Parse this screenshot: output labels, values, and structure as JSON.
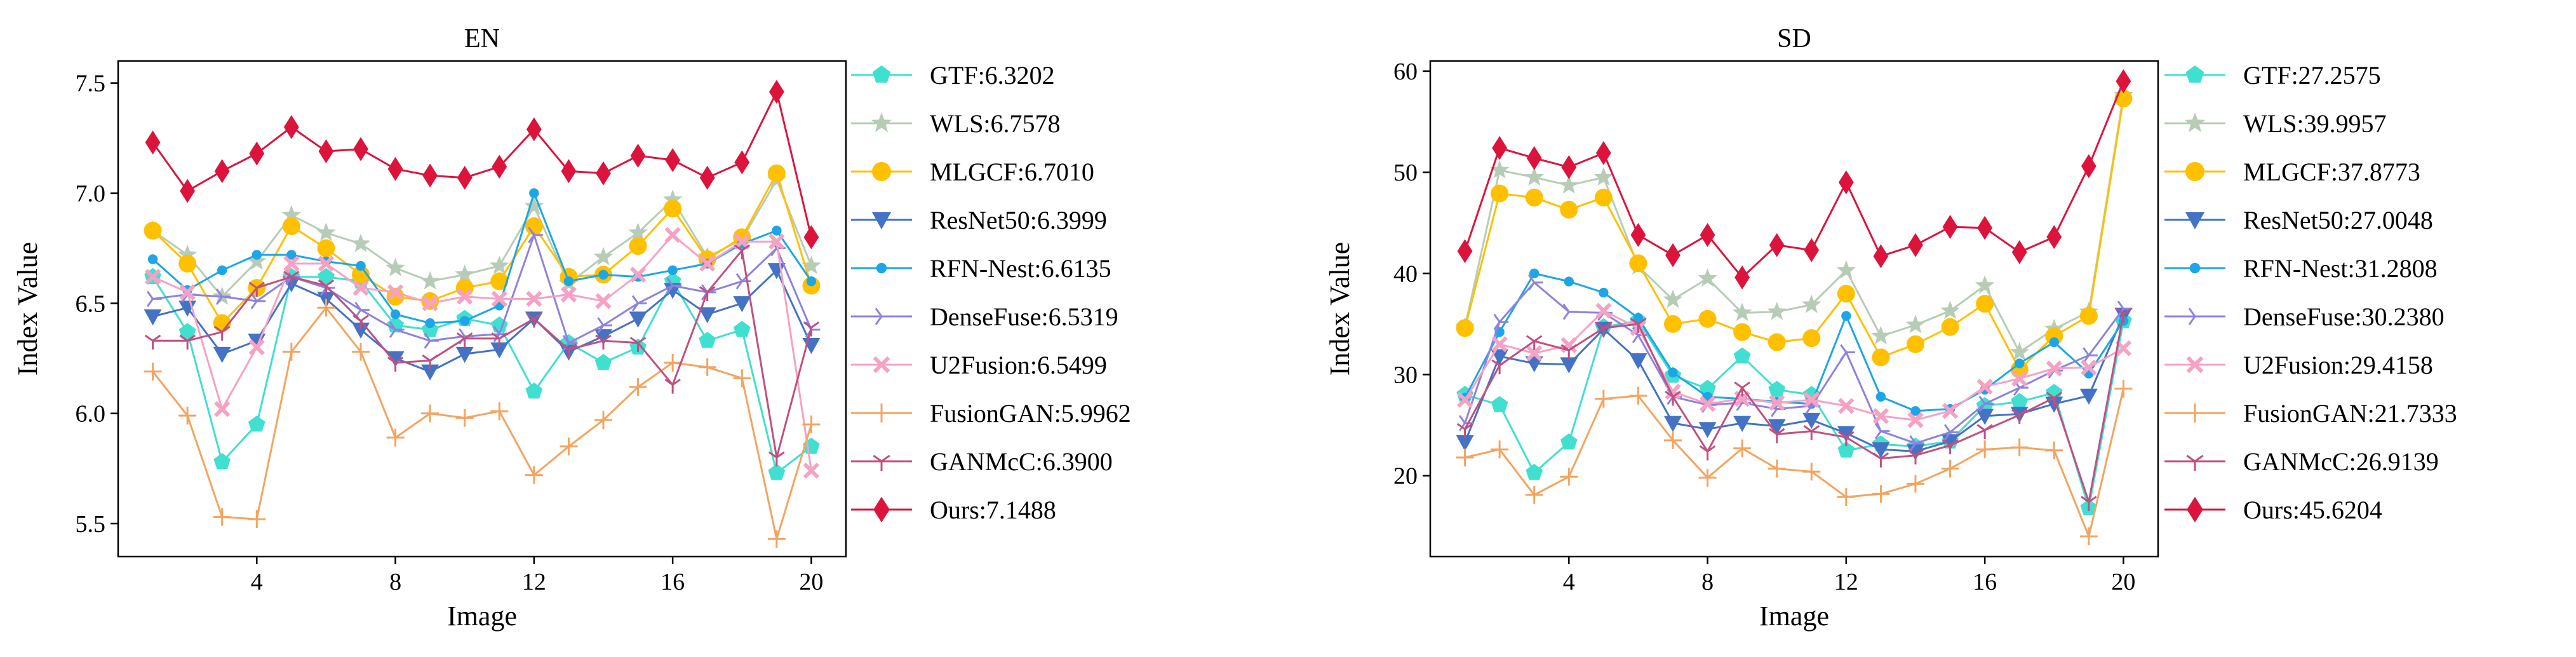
{
  "chart_data": [
    {
      "type": "line",
      "title": "EN",
      "xlabel": "Image",
      "ylabel": "Index Value",
      "xlim": [
        0,
        21
      ],
      "ylim": [
        5.35,
        7.6
      ],
      "xticks": [
        4,
        8,
        12,
        16,
        20
      ],
      "yticks": [
        5.5,
        6.0,
        6.5,
        7.0,
        7.5
      ],
      "ytick_labels": [
        "5.5",
        "6.0",
        "6.5",
        "7.0",
        "7.5"
      ],
      "x": [
        1,
        2,
        3,
        4,
        5,
        6,
        7,
        8,
        9,
        10,
        11,
        12,
        13,
        14,
        15,
        16,
        17,
        18,
        19,
        20
      ],
      "legend_position": "right",
      "series": [
        {
          "name": "GTF",
          "legend": "GTF:6.3202",
          "color": "#40E0D0",
          "marker": "pentagon",
          "values": [
            6.62,
            6.37,
            5.78,
            5.95,
            6.62,
            6.62,
            6.6,
            6.4,
            6.38,
            6.43,
            6.4,
            6.1,
            6.32,
            6.23,
            6.3,
            6.6,
            6.33,
            6.38,
            5.73,
            5.85
          ]
        },
        {
          "name": "WLS",
          "legend": "WLS:6.7578",
          "color": "#B7CCB7",
          "marker": "star",
          "values": [
            6.83,
            6.72,
            6.53,
            6.69,
            6.9,
            6.82,
            6.77,
            6.66,
            6.6,
            6.63,
            6.67,
            6.94,
            6.59,
            6.71,
            6.82,
            6.97,
            6.71,
            6.79,
            7.06,
            6.67
          ]
        },
        {
          "name": "MLGCF",
          "legend": "MLGCF:6.7010",
          "color": "#FFC000",
          "marker": "circle",
          "values": [
            6.83,
            6.68,
            6.41,
            6.57,
            6.85,
            6.75,
            6.63,
            6.53,
            6.51,
            6.57,
            6.6,
            6.85,
            6.62,
            6.63,
            6.76,
            6.93,
            6.7,
            6.8,
            7.09,
            6.58
          ]
        },
        {
          "name": "ResNet50",
          "legend": "ResNet50:6.3999",
          "color": "#4472C4",
          "marker": "triangle-down",
          "values": [
            6.44,
            6.48,
            6.27,
            6.33,
            6.59,
            6.52,
            6.38,
            6.25,
            6.19,
            6.27,
            6.29,
            6.43,
            6.28,
            6.35,
            6.43,
            6.56,
            6.45,
            6.5,
            6.65,
            6.31
          ]
        },
        {
          "name": "RFN-Nest",
          "legend": "RFN-Nest:6.6135",
          "color": "#1CA6E8",
          "marker": "dot",
          "values": [
            6.7,
            6.56,
            6.65,
            6.72,
            6.72,
            6.69,
            6.67,
            6.45,
            6.41,
            6.42,
            6.49,
            7.0,
            6.6,
            6.63,
            6.62,
            6.65,
            6.68,
            6.77,
            6.83,
            6.6
          ]
        },
        {
          "name": "DenseFuse",
          "legend": "DenseFuse:6.5319",
          "color": "#8E82E0",
          "marker": "tri-right",
          "values": [
            6.52,
            6.54,
            6.53,
            6.51,
            6.62,
            6.57,
            6.47,
            6.38,
            6.33,
            6.35,
            6.36,
            6.81,
            6.32,
            6.4,
            6.5,
            6.58,
            6.55,
            6.6,
            6.75,
            6.38
          ]
        },
        {
          "name": "U2Fusion",
          "legend": "U2Fusion:6.5499",
          "color": "#F7A1C4",
          "marker": "x-thick",
          "values": [
            6.62,
            6.55,
            6.02,
            6.3,
            6.68,
            6.68,
            6.57,
            6.55,
            6.5,
            6.53,
            6.52,
            6.52,
            6.54,
            6.51,
            6.63,
            6.81,
            6.68,
            6.78,
            6.78,
            5.74
          ]
        },
        {
          "name": "FusionGAN",
          "legend": "FusionGAN:5.9962",
          "color": "#F4A460",
          "marker": "plus",
          "values": [
            6.19,
            5.99,
            5.53,
            5.52,
            6.28,
            6.48,
            6.28,
            5.89,
            6.0,
            5.98,
            6.01,
            5.72,
            5.85,
            5.97,
            6.12,
            6.23,
            6.21,
            6.16,
            5.43,
            5.95
          ]
        },
        {
          "name": "GANMcC",
          "legend": "GANMcC:6.3900",
          "color": "#C05080",
          "marker": "tri-down",
          "values": [
            6.33,
            6.33,
            6.37,
            6.57,
            6.62,
            6.58,
            6.42,
            6.23,
            6.24,
            6.34,
            6.34,
            6.43,
            6.29,
            6.33,
            6.32,
            6.13,
            6.55,
            6.74,
            5.8,
            6.39
          ]
        },
        {
          "name": "Ours",
          "legend": "Ours:7.1488",
          "color": "#DC143C",
          "marker": "diamond",
          "values": [
            7.23,
            7.01,
            7.1,
            7.18,
            7.3,
            7.19,
            7.2,
            7.11,
            7.08,
            7.07,
            7.12,
            7.29,
            7.1,
            7.09,
            7.17,
            7.15,
            7.07,
            7.14,
            7.46,
            6.8
          ]
        }
      ]
    },
    {
      "type": "line",
      "title": "SD",
      "xlabel": "Image",
      "ylabel": "Index Value",
      "xlim": [
        0,
        21
      ],
      "ylim": [
        12,
        61
      ],
      "xticks": [
        4,
        8,
        12,
        16,
        20
      ],
      "yticks": [
        20,
        30,
        40,
        50,
        60
      ],
      "ytick_labels": [
        "20",
        "30",
        "40",
        "50",
        "60"
      ],
      "x": [
        1,
        2,
        3,
        4,
        5,
        6,
        7,
        8,
        9,
        10,
        11,
        12,
        13,
        14,
        15,
        16,
        17,
        18,
        19,
        20
      ],
      "legend_position": "right",
      "series": [
        {
          "name": "GTF",
          "legend": "GTF:27.2575",
          "color": "#40E0D0",
          "marker": "pentagon",
          "values": [
            28.0,
            27.0,
            20.3,
            23.3,
            34.7,
            35.3,
            29.9,
            28.6,
            31.8,
            28.5,
            28.0,
            22.5,
            23.1,
            22.9,
            23.4,
            26.9,
            27.3,
            28.2,
            16.8,
            35.3
          ]
        },
        {
          "name": "WLS",
          "legend": "WLS:39.9957",
          "color": "#B7CCB7",
          "marker": "star",
          "values": [
            34.7,
            50.2,
            49.5,
            48.7,
            49.5,
            40.7,
            37.4,
            39.5,
            36.1,
            36.2,
            36.9,
            40.3,
            33.8,
            34.9,
            36.3,
            38.8,
            32.2,
            34.5,
            36.2,
            57.6
          ]
        },
        {
          "name": "MLGCF",
          "legend": "MLGCF:37.8773",
          "color": "#FFC000",
          "marker": "circle",
          "values": [
            34.6,
            47.9,
            47.5,
            46.3,
            47.5,
            41.0,
            35.0,
            35.5,
            34.2,
            33.2,
            33.6,
            38.0,
            31.7,
            33.0,
            34.7,
            37.0,
            30.5,
            33.8,
            35.8,
            57.3
          ]
        },
        {
          "name": "ResNet50",
          "legend": "ResNet50:27.0048",
          "color": "#4472C4",
          "marker": "triangle-down",
          "values": [
            23.3,
            31.8,
            31.1,
            31.0,
            34.5,
            31.4,
            25.2,
            24.6,
            25.2,
            24.9,
            25.5,
            24.2,
            22.6,
            22.4,
            23.4,
            25.9,
            26.1,
            27.1,
            27.9,
            35.9
          ]
        },
        {
          "name": "RFN-Nest",
          "legend": "RFN-Nest:31.2808",
          "color": "#1CA6E8",
          "marker": "dot",
          "values": [
            27.7,
            34.2,
            40.0,
            39.2,
            38.1,
            35.6,
            30.2,
            27.8,
            27.6,
            27.3,
            27.1,
            35.8,
            27.8,
            26.4,
            26.6,
            28.5,
            31.1,
            33.2,
            30.1,
            35.3
          ]
        },
        {
          "name": "DenseFuse",
          "legend": "DenseFuse:30.2380",
          "color": "#8E82E0",
          "marker": "tri-right",
          "values": [
            25.2,
            35.2,
            39.1,
            36.2,
            36.1,
            33.9,
            27.8,
            27.0,
            27.2,
            26.6,
            26.9,
            32.2,
            24.4,
            23.2,
            24.3,
            27.1,
            28.7,
            30.4,
            31.9,
            36.5
          ]
        },
        {
          "name": "U2Fusion",
          "legend": "U2Fusion:29.4158",
          "color": "#F7A1C4",
          "marker": "x-thick",
          "values": [
            27.5,
            33.0,
            32.1,
            32.9,
            36.3,
            34.6,
            28.3,
            27.1,
            27.6,
            27.2,
            27.5,
            26.9,
            25.9,
            25.5,
            26.4,
            28.8,
            29.6,
            30.6,
            30.7,
            32.6
          ]
        },
        {
          "name": "FusionGAN",
          "legend": "FusionGAN:21.7333",
          "color": "#F4A460",
          "marker": "plus",
          "values": [
            21.8,
            22.6,
            18.1,
            19.9,
            27.6,
            27.9,
            23.5,
            19.8,
            22.7,
            20.7,
            20.4,
            17.9,
            18.2,
            19.2,
            20.7,
            22.6,
            22.8,
            22.5,
            14.0,
            28.6
          ]
        },
        {
          "name": "GANMcC",
          "legend": "GANMcC:26.9139",
          "color": "#C05080",
          "marker": "tri-down",
          "values": [
            24.6,
            30.9,
            33.3,
            32.4,
            34.6,
            35.0,
            27.8,
            22.4,
            28.7,
            24.1,
            24.4,
            23.8,
            21.7,
            22.0,
            23.0,
            24.5,
            26.0,
            27.7,
            17.4,
            36.0
          ]
        },
        {
          "name": "Ours",
          "legend": "Ours:45.6204",
          "color": "#DC143C",
          "marker": "diamond",
          "values": [
            42.2,
            52.4,
            51.4,
            50.5,
            51.9,
            43.8,
            41.8,
            43.8,
            39.6,
            42.8,
            42.3,
            49.0,
            41.7,
            42.8,
            44.6,
            44.5,
            42.1,
            43.6,
            50.6,
            59.0
          ]
        }
      ]
    }
  ]
}
